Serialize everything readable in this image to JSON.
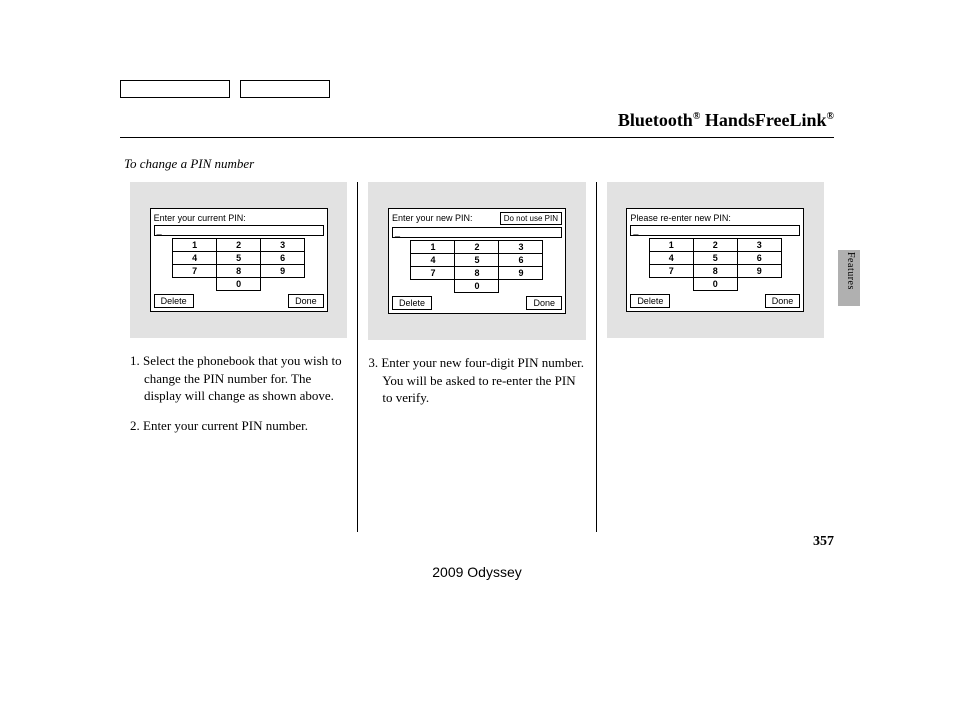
{
  "header": {
    "title_html": "Bluetooth® HandsFreeLink®"
  },
  "subtitle": "To change a PIN number",
  "screens": [
    {
      "title": "Enter your current PIN:",
      "extra_button": null,
      "cursor": "_",
      "delete": "Delete",
      "done": "Done"
    },
    {
      "title": "Enter your new PIN:",
      "extra_button": "Do not use PIN",
      "cursor": "_",
      "delete": "Delete",
      "done": "Done"
    },
    {
      "title": "Please re-enter new PIN:",
      "extra_button": null,
      "cursor": "_",
      "delete": "Delete",
      "done": "Done"
    }
  ],
  "keypad": [
    [
      "1",
      "2",
      "3"
    ],
    [
      "4",
      "5",
      "6"
    ],
    [
      "7",
      "8",
      "9"
    ],
    [
      "",
      "0",
      ""
    ]
  ],
  "instructions_col1": [
    "1. Select the phonebook that you wish to change the PIN number for. The display will change as shown above.",
    "2. Enter your current PIN number."
  ],
  "instructions_col2": [
    "3. Enter your new four-digit PIN number. You will be asked to re-enter the PIN to verify."
  ],
  "side_label": "Features",
  "page_number": "357",
  "footer": "2009  Odyssey"
}
